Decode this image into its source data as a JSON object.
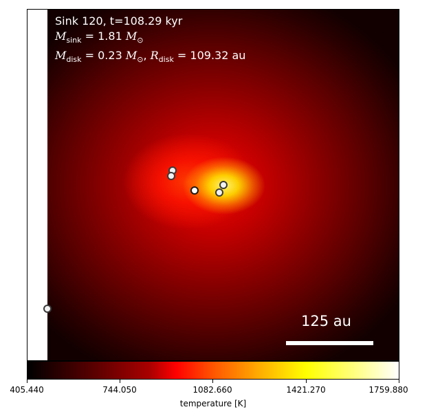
{
  "title_line": "Sink 120, t=108.29 kyr",
  "sink_mass": {
    "symbol": "M",
    "subscript": "sink",
    "expression": "= 1.81",
    "unit_symbol": "M",
    "unit_subscript": "⊙"
  },
  "disk": {
    "mass_symbol": "M",
    "mass_subscript": "disk",
    "mass_expression": "= 0.23",
    "mass_unit_symbol": "M",
    "mass_unit_subscript": "⊙",
    "separator": ", ",
    "radius_symbol": "R",
    "radius_subscript": "disk",
    "radius_expression": "= 109.32 au"
  },
  "scale_bar": {
    "label": "125 au"
  },
  "colorbar": {
    "label": "temperature [K]",
    "ticks": [
      "405.440",
      "744.050",
      "1082.660",
      "1421.270",
      "1759.880"
    ],
    "min": 405.44,
    "max": 1759.88,
    "colormap": "afmhot"
  },
  "colors": {
    "hotspot": "#ffff33",
    "background_dark": "#120000",
    "text": "#ffffff"
  }
}
